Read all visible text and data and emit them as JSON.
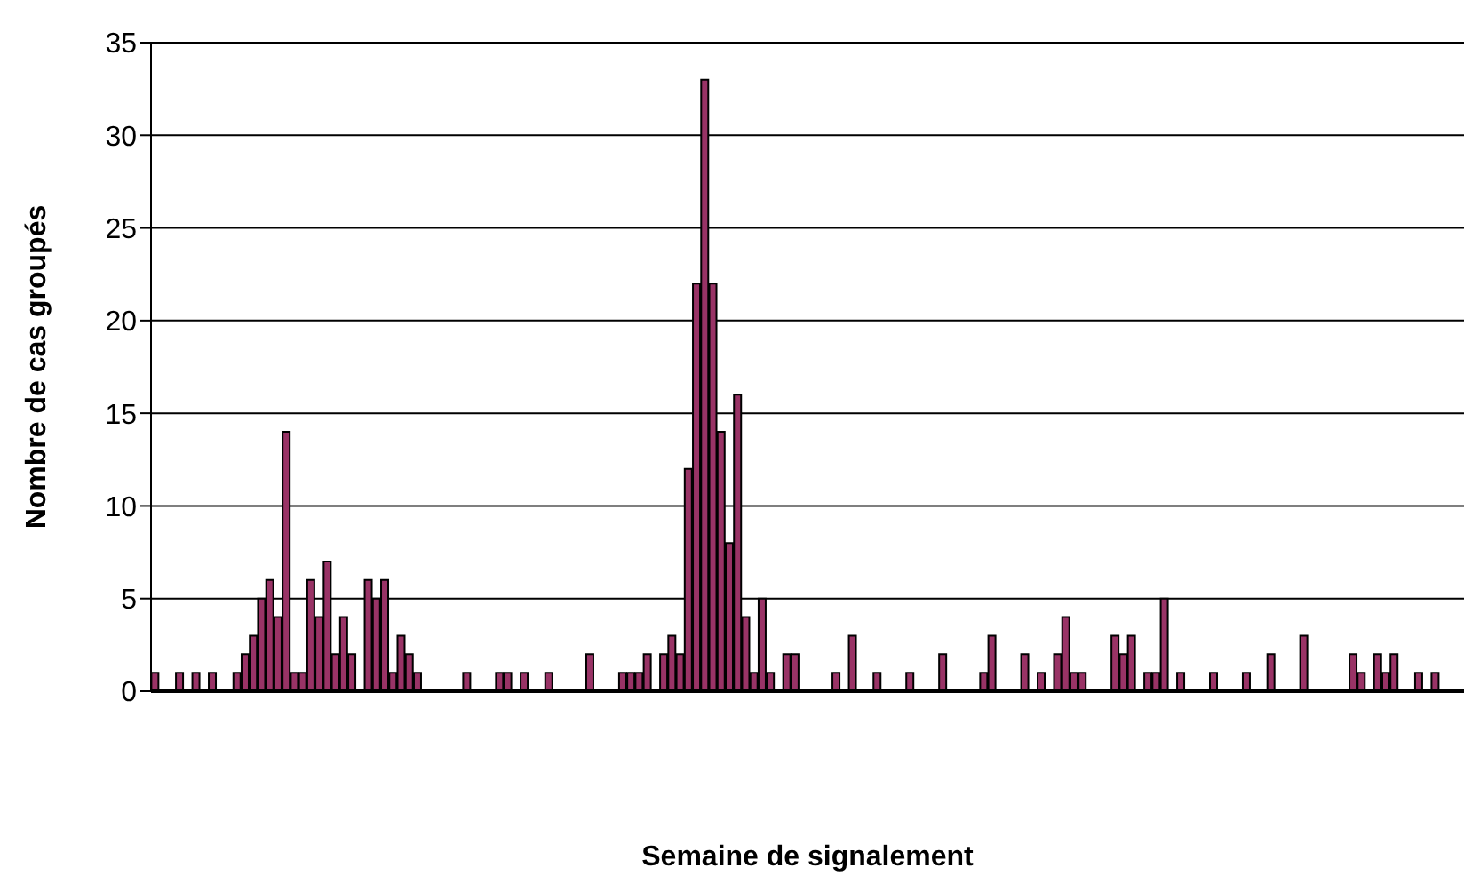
{
  "chart_data": {
    "type": "bar",
    "xlabel": "Semaine de signalement",
    "ylabel": "Nombre de cas groupés",
    "categories": [
      null,
      null,
      null,
      null,
      null,
      null,
      null,
      null,
      null,
      null,
      null,
      null,
      null,
      null,
      null,
      null,
      null,
      null,
      null,
      null,
      null,
      null,
      null,
      null,
      null,
      null,
      null,
      null,
      null,
      null,
      null,
      null,
      null,
      null,
      null,
      null,
      null,
      null,
      null,
      null,
      null,
      null,
      null,
      null,
      null,
      null,
      null,
      null,
      null,
      null,
      null,
      null,
      null,
      null,
      null,
      null,
      null,
      null,
      null,
      null,
      null,
      null,
      null,
      null,
      null,
      null,
      null,
      null,
      null,
      null,
      null,
      null,
      null,
      null,
      null,
      null,
      null,
      null,
      null,
      null,
      null,
      null,
      null,
      null,
      null,
      null,
      null,
      null,
      null,
      null,
      null,
      null,
      null,
      null,
      null,
      null,
      null,
      null,
      null,
      null,
      null,
      null,
      null,
      null,
      null,
      null,
      null,
      null,
      null,
      null,
      null,
      null,
      null,
      null,
      null,
      null,
      null,
      null,
      null,
      null,
      null,
      null,
      null,
      null,
      null,
      null,
      null,
      null,
      null,
      null,
      null,
      null,
      null,
      null,
      null,
      null,
      null,
      null,
      null,
      null,
      null,
      null,
      null,
      null,
      null,
      null,
      null,
      null,
      null,
      null,
      null,
      null,
      null,
      null,
      null,
      null,
      null,
      null,
      null,
      null
    ],
    "values": [
      1,
      0,
      0,
      1,
      0,
      1,
      0,
      1,
      0,
      0,
      1,
      2,
      3,
      5,
      6,
      4,
      14,
      1,
      1,
      6,
      4,
      7,
      2,
      4,
      2,
      0,
      6,
      5,
      6,
      1,
      3,
      2,
      1,
      0,
      0,
      0,
      0,
      0,
      1,
      0,
      0,
      0,
      1,
      1,
      0,
      1,
      0,
      0,
      1,
      0,
      0,
      0,
      0,
      2,
      0,
      0,
      0,
      1,
      1,
      1,
      2,
      0,
      2,
      3,
      2,
      12,
      22,
      33,
      22,
      14,
      8,
      16,
      4,
      1,
      5,
      1,
      0,
      2,
      2,
      0,
      0,
      0,
      0,
      1,
      0,
      3,
      0,
      0,
      1,
      0,
      0,
      0,
      1,
      0,
      0,
      0,
      2,
      0,
      0,
      0,
      0,
      1,
      3,
      0,
      0,
      0,
      2,
      0,
      1,
      0,
      2,
      4,
      1,
      1,
      0,
      0,
      0,
      3,
      2,
      3,
      0,
      1,
      1,
      5,
      0,
      1,
      0,
      0,
      0,
      1,
      0,
      0,
      0,
      1,
      0,
      0,
      2,
      0,
      0,
      0,
      3,
      0,
      0,
      0,
      0,
      0,
      2,
      1,
      0,
      2,
      1,
      2,
      0,
      0,
      1,
      0,
      1,
      0,
      0,
      0
    ],
    "color": "#993366",
    "ylim": [
      0,
      35
    ],
    "yticks": [
      0,
      5,
      10,
      15,
      20,
      25,
      30,
      35
    ],
    "grid": "y",
    "legend": false
  }
}
